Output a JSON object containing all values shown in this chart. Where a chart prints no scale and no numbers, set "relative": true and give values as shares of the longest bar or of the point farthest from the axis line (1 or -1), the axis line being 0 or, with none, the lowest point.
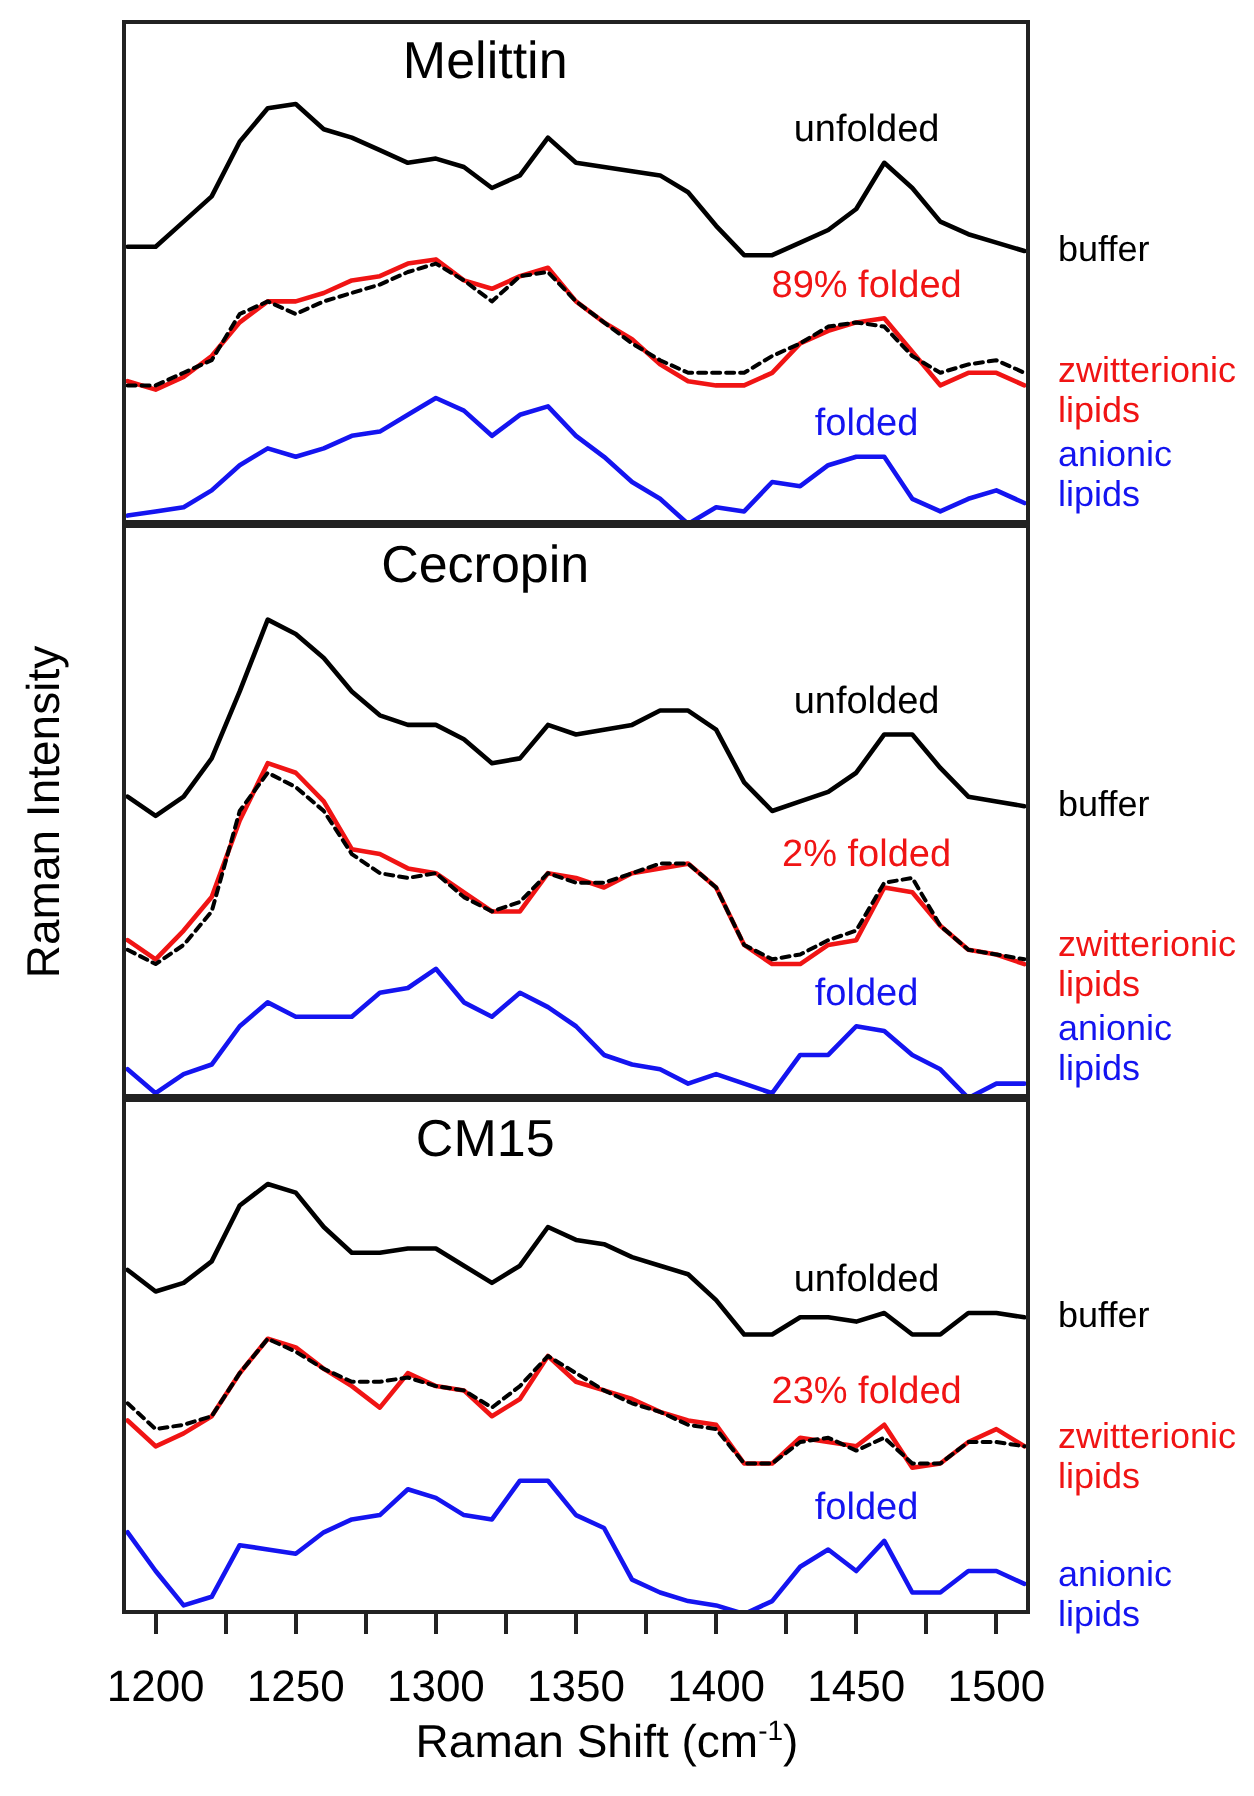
{
  "chart_data": [
    {
      "type": "line",
      "title": "Melittin",
      "relative": true,
      "tick_labels": false,
      "xlim": [
        1188,
        1512
      ],
      "x": [
        1190,
        1200,
        1210,
        1220,
        1230,
        1240,
        1250,
        1260,
        1270,
        1280,
        1290,
        1300,
        1310,
        1320,
        1330,
        1340,
        1350,
        1360,
        1370,
        1380,
        1390,
        1400,
        1410,
        1420,
        1430,
        1440,
        1450,
        1460,
        1470,
        1480,
        1490,
        1500,
        1510
      ],
      "series": [
        {
          "name": "buffer",
          "color": "#000000",
          "values": [
            0.66,
            0.66,
            0.72,
            0.78,
            0.91,
            0.99,
            1.0,
            0.94,
            0.92,
            0.89,
            0.86,
            0.87,
            0.85,
            0.8,
            0.83,
            0.92,
            0.86,
            0.85,
            0.84,
            0.83,
            0.79,
            0.71,
            0.64,
            0.64,
            0.67,
            0.7,
            0.75,
            0.86,
            0.8,
            0.72,
            0.69,
            0.67,
            0.65
          ]
        },
        {
          "name": "zwitterionic lipids",
          "color": "#f01414",
          "values": [
            0.34,
            0.32,
            0.35,
            0.4,
            0.48,
            0.53,
            0.53,
            0.55,
            0.58,
            0.59,
            0.62,
            0.63,
            0.58,
            0.56,
            0.59,
            0.61,
            0.53,
            0.48,
            0.44,
            0.38,
            0.34,
            0.33,
            0.33,
            0.36,
            0.43,
            0.46,
            0.48,
            0.49,
            0.41,
            0.33,
            0.36,
            0.36,
            0.33
          ]
        },
        {
          "color": "#000000",
          "line_style": "dashed",
          "values": [
            0.33,
            0.33,
            0.36,
            0.39,
            0.5,
            0.53,
            0.5,
            0.53,
            0.55,
            0.57,
            0.6,
            0.62,
            0.58,
            0.53,
            0.59,
            0.6,
            0.53,
            0.48,
            0.43,
            0.39,
            0.36,
            0.36,
            0.36,
            0.4,
            0.43,
            0.47,
            0.48,
            0.47,
            0.4,
            0.36,
            0.38,
            0.39,
            0.36
          ]
        },
        {
          "name": "anionic lipids",
          "color": "#1414f0",
          "values": [
            0.02,
            0.03,
            0.04,
            0.08,
            0.14,
            0.18,
            0.16,
            0.18,
            0.21,
            0.22,
            0.26,
            0.3,
            0.27,
            0.21,
            0.26,
            0.28,
            0.21,
            0.16,
            0.1,
            0.06,
            0.0,
            0.04,
            0.03,
            0.1,
            0.09,
            0.14,
            0.16,
            0.16,
            0.06,
            0.03,
            0.06,
            0.08,
            0.05
          ]
        }
      ],
      "annotations": [
        "unfolded",
        "89% folded",
        "folded"
      ]
    },
    {
      "type": "line",
      "title": "Cecropin",
      "ylabel": "Raman Intensity",
      "relative": true,
      "tick_labels": false,
      "xlim": [
        1188,
        1512
      ],
      "x": [
        1190,
        1200,
        1210,
        1220,
        1230,
        1240,
        1250,
        1260,
        1270,
        1280,
        1290,
        1300,
        1310,
        1320,
        1330,
        1340,
        1350,
        1360,
        1370,
        1380,
        1390,
        1400,
        1410,
        1420,
        1430,
        1440,
        1450,
        1460,
        1470,
        1480,
        1490,
        1500,
        1510
      ],
      "series": [
        {
          "name": "buffer",
          "color": "#000000",
          "values": [
            0.63,
            0.59,
            0.63,
            0.71,
            0.85,
            1.0,
            0.97,
            0.92,
            0.85,
            0.8,
            0.78,
            0.78,
            0.75,
            0.7,
            0.71,
            0.78,
            0.76,
            0.77,
            0.78,
            0.81,
            0.81,
            0.77,
            0.66,
            0.6,
            0.62,
            0.64,
            0.68,
            0.76,
            0.76,
            0.69,
            0.63,
            0.62,
            0.61
          ]
        },
        {
          "name": "zwitterionic lipids",
          "color": "#f01414",
          "values": [
            0.33,
            0.29,
            0.35,
            0.42,
            0.58,
            0.7,
            0.68,
            0.62,
            0.52,
            0.51,
            0.48,
            0.47,
            0.43,
            0.39,
            0.39,
            0.47,
            0.46,
            0.44,
            0.47,
            0.48,
            0.49,
            0.44,
            0.32,
            0.28,
            0.28,
            0.32,
            0.33,
            0.44,
            0.43,
            0.36,
            0.31,
            0.3,
            0.28
          ]
        },
        {
          "color": "#000000",
          "line_style": "dashed",
          "values": [
            0.31,
            0.28,
            0.32,
            0.39,
            0.6,
            0.68,
            0.65,
            0.6,
            0.51,
            0.47,
            0.46,
            0.47,
            0.42,
            0.39,
            0.41,
            0.47,
            0.45,
            0.45,
            0.47,
            0.49,
            0.49,
            0.44,
            0.32,
            0.29,
            0.3,
            0.33,
            0.35,
            0.45,
            0.46,
            0.36,
            0.31,
            0.3,
            0.29
          ]
        },
        {
          "name": "anionic lipids",
          "color": "#1414f0",
          "values": [
            0.06,
            0.01,
            0.05,
            0.07,
            0.15,
            0.2,
            0.17,
            0.17,
            0.17,
            0.22,
            0.23,
            0.27,
            0.2,
            0.17,
            0.22,
            0.19,
            0.15,
            0.09,
            0.07,
            0.06,
            0.03,
            0.05,
            0.03,
            0.01,
            0.09,
            0.09,
            0.15,
            0.14,
            0.09,
            0.06,
            0.0,
            0.03,
            0.03
          ]
        }
      ],
      "annotations": [
        "unfolded",
        "2% folded",
        "folded"
      ]
    },
    {
      "type": "line",
      "title": "CM15",
      "xlabel": "Raman Shift (cm$^{-1}$)",
      "relative": true,
      "tick_labels": "x",
      "xlim": [
        1188,
        1512
      ],
      "xticks": [
        1200,
        {
          "value": 1225,
          "label": null
        },
        1250,
        {
          "value": 1275,
          "label": null
        },
        1300,
        {
          "value": 1325,
          "label": null
        },
        1350,
        {
          "value": 1375,
          "label": null
        },
        1400,
        {
          "value": 1425,
          "label": null
        },
        1450,
        {
          "value": 1475,
          "label": null
        },
        1500
      ],
      "x": [
        1190,
        1200,
        1210,
        1220,
        1230,
        1240,
        1250,
        1260,
        1270,
        1280,
        1290,
        1300,
        1310,
        1320,
        1330,
        1340,
        1350,
        1360,
        1370,
        1380,
        1390,
        1400,
        1410,
        1420,
        1430,
        1440,
        1450,
        1460,
        1470,
        1480,
        1490,
        1500,
        1510
      ],
      "series": [
        {
          "name": "buffer",
          "color": "#000000",
          "values": [
            0.8,
            0.75,
            0.77,
            0.82,
            0.95,
            1.0,
            0.98,
            0.9,
            0.84,
            0.84,
            0.85,
            0.85,
            0.81,
            0.77,
            0.81,
            0.9,
            0.87,
            0.86,
            0.83,
            0.81,
            0.79,
            0.73,
            0.65,
            0.65,
            0.69,
            0.69,
            0.68,
            0.7,
            0.65,
            0.65,
            0.7,
            0.7,
            0.69
          ]
        },
        {
          "name": "zwitterionic lipids",
          "color": "#f01414",
          "values": [
            0.45,
            0.39,
            0.42,
            0.46,
            0.56,
            0.64,
            0.62,
            0.57,
            0.53,
            0.48,
            0.56,
            0.53,
            0.52,
            0.46,
            0.5,
            0.6,
            0.54,
            0.52,
            0.5,
            0.47,
            0.45,
            0.44,
            0.35,
            0.35,
            0.41,
            0.4,
            0.39,
            0.44,
            0.34,
            0.35,
            0.4,
            0.43,
            0.39
          ]
        },
        {
          "color": "#000000",
          "line_style": "dashed",
          "values": [
            0.49,
            0.43,
            0.44,
            0.46,
            0.56,
            0.64,
            0.61,
            0.57,
            0.54,
            0.54,
            0.55,
            0.53,
            0.52,
            0.48,
            0.53,
            0.6,
            0.56,
            0.52,
            0.49,
            0.47,
            0.44,
            0.43,
            0.35,
            0.35,
            0.4,
            0.41,
            0.38,
            0.41,
            0.35,
            0.35,
            0.4,
            0.4,
            0.39
          ]
        },
        {
          "name": "anionic lipids",
          "color": "#1414f0",
          "values": [
            0.19,
            0.1,
            0.02,
            0.04,
            0.16,
            0.15,
            0.14,
            0.19,
            0.22,
            0.23,
            0.29,
            0.27,
            0.23,
            0.22,
            0.31,
            0.31,
            0.23,
            0.2,
            0.08,
            0.05,
            0.03,
            0.02,
            0.0,
            0.03,
            0.11,
            0.15,
            0.1,
            0.17,
            0.05,
            0.05,
            0.1,
            0.1,
            0.07
          ]
        }
      ],
      "annotations": [
        "unfolded",
        "23% folded",
        "folded"
      ]
    }
  ]
}
